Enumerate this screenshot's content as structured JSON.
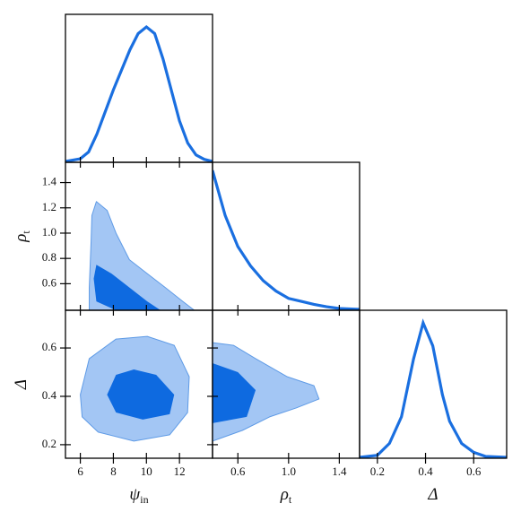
{
  "chart_data": [
    {
      "type": "line",
      "color": "#1a6fe0",
      "xlim": [
        5.1,
        14.0
      ],
      "ylim": [
        0,
        1
      ],
      "x": [
        5.1,
        6,
        6.5,
        7,
        8,
        9,
        9.5,
        10,
        10.5,
        11,
        11.5,
        12,
        12.5,
        13,
        13.5,
        14
      ],
      "values": [
        0.006,
        0.024,
        0.07,
        0.19,
        0.49,
        0.76,
        0.87,
        0.915,
        0.87,
        0.7,
        0.49,
        0.28,
        0.13,
        0.05,
        0.02,
        0.006
      ]
    },
    {
      "type": "contour",
      "xlim": [
        5.1,
        14.0
      ],
      "ylim": [
        0.39,
        1.56
      ],
      "yticks": [
        0.6,
        0.8,
        {
          "value": 1,
          "label": "1.0"
        },
        1.2,
        1.4
      ],
      "ylabel": {
        "base": "ρ",
        "sub": "t"
      },
      "contours": [
        {
          "color": "#a3c6f4",
          "x": [
            6.97,
            7.62,
            8.16,
            8.97,
            10.05,
            11.14,
            12.2,
            12.9,
            6.54,
            6.54,
            6.65,
            6.7
          ],
          "y": [
            1.25,
            1.18,
            1.0,
            0.79,
            0.68,
            0.57,
            0.46,
            0.39,
            0.39,
            0.57,
            0.93,
            1.14
          ]
        },
        {
          "color": "#0e6ae0",
          "x": [
            6.97,
            7.89,
            8.97,
            10.05,
            10.86,
            8.16,
            6.97,
            6.81
          ],
          "y": [
            0.75,
            0.68,
            0.57,
            0.46,
            0.39,
            0.39,
            0.46,
            0.64
          ]
        }
      ]
    },
    {
      "type": "line",
      "color": "#1a6fe0",
      "xlim": [
        0.4,
        1.56
      ],
      "ylim": [
        0,
        1
      ],
      "x": [
        0.4,
        0.5,
        0.6,
        0.7,
        0.8,
        0.9,
        1.0,
        1.1,
        1.2,
        1.3,
        1.4,
        1.56
      ],
      "values": [
        0.945,
        0.64,
        0.43,
        0.3,
        0.2,
        0.13,
        0.08,
        0.06,
        0.04,
        0.024,
        0.012,
        0.006
      ]
    },
    {
      "type": "contour",
      "xlim": [
        5.1,
        14.0
      ],
      "ylim": [
        0.144,
        0.756
      ],
      "xticks": [
        6,
        8,
        10,
        12
      ],
      "yticks": [
        0.2,
        0.4,
        0.6
      ],
      "xlabel": {
        "base": "ψ",
        "sub": "in"
      },
      "ylabel": {
        "base": "Δ"
      },
      "contours": [
        {
          "color": "#a3c6f4",
          "x": [
            6,
            6.54,
            8.16,
            10.05,
            11.68,
            12.59,
            12.49,
            11.41,
            9.24,
            7.08,
            6.11
          ],
          "y": [
            0.407,
            0.556,
            0.637,
            0.648,
            0.611,
            0.481,
            0.333,
            0.241,
            0.215,
            0.252,
            0.315
          ]
        },
        {
          "color": "#0e6ae0",
          "x": [
            7.62,
            8.16,
            9.24,
            10.59,
            11.68,
            11.41,
            9.78,
            8.16
          ],
          "y": [
            0.407,
            0.489,
            0.511,
            0.489,
            0.407,
            0.326,
            0.304,
            0.333
          ]
        }
      ]
    },
    {
      "type": "contour",
      "xlim": [
        0.4,
        1.56
      ],
      "ylim": [
        0.144,
        0.756
      ],
      "xticks": [
        0.6,
        {
          "value": 1,
          "label": "1.0"
        },
        1.4
      ],
      "xlabel": {
        "base": "ρ",
        "sub": "t"
      },
      "contours": [
        {
          "color": "#a3c6f4",
          "x": [
            0.4,
            0.565,
            0.74,
            0.99,
            1.2,
            1.24,
            1.06,
            0.85,
            0.635,
            0.4
          ],
          "y": [
            0.622,
            0.611,
            0.556,
            0.481,
            0.444,
            0.389,
            0.352,
            0.315,
            0.259,
            0.215
          ]
        },
        {
          "color": "#0e6ae0",
          "x": [
            0.4,
            0.6,
            0.74,
            0.67,
            0.4
          ],
          "y": [
            0.537,
            0.5,
            0.426,
            0.315,
            0.289
          ]
        }
      ]
    },
    {
      "type": "line",
      "color": "#1a6fe0",
      "xlim": [
        0.126,
        0.737
      ],
      "ylim": [
        0,
        1
      ],
      "xticks": [
        0.2,
        0.4,
        0.6
      ],
      "xlabel": {
        "base": "Δ"
      },
      "x": [
        0.126,
        0.2,
        0.25,
        0.3,
        0.35,
        0.39,
        0.43,
        0.47,
        0.5,
        0.55,
        0.6,
        0.65,
        0.737
      ],
      "values": [
        0.006,
        0.02,
        0.1,
        0.28,
        0.67,
        0.915,
        0.76,
        0.43,
        0.25,
        0.1,
        0.04,
        0.012,
        0.006
      ]
    }
  ]
}
